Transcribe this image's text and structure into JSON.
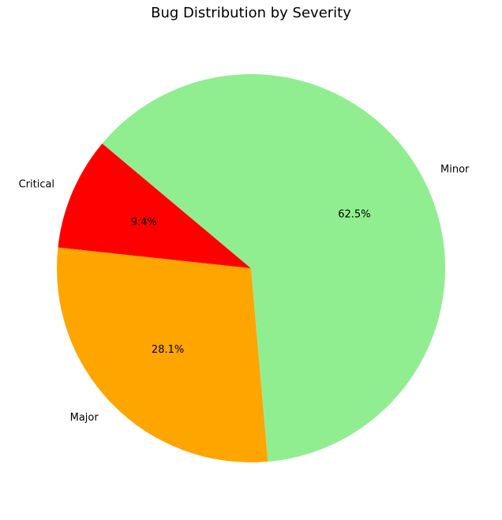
{
  "chart_data": {
    "type": "pie",
    "title": "Bug Distribution by Severity",
    "categories": [
      "Critical",
      "Major",
      "Minor"
    ],
    "values": [
      9.4,
      28.1,
      62.5
    ],
    "percent_labels": [
      "9.4%",
      "28.1%",
      "62.5%"
    ],
    "colors": [
      "#ff0000",
      "#ffa500",
      "#90ee90"
    ],
    "start_angle_deg": 140,
    "direction": "counterclockwise"
  }
}
